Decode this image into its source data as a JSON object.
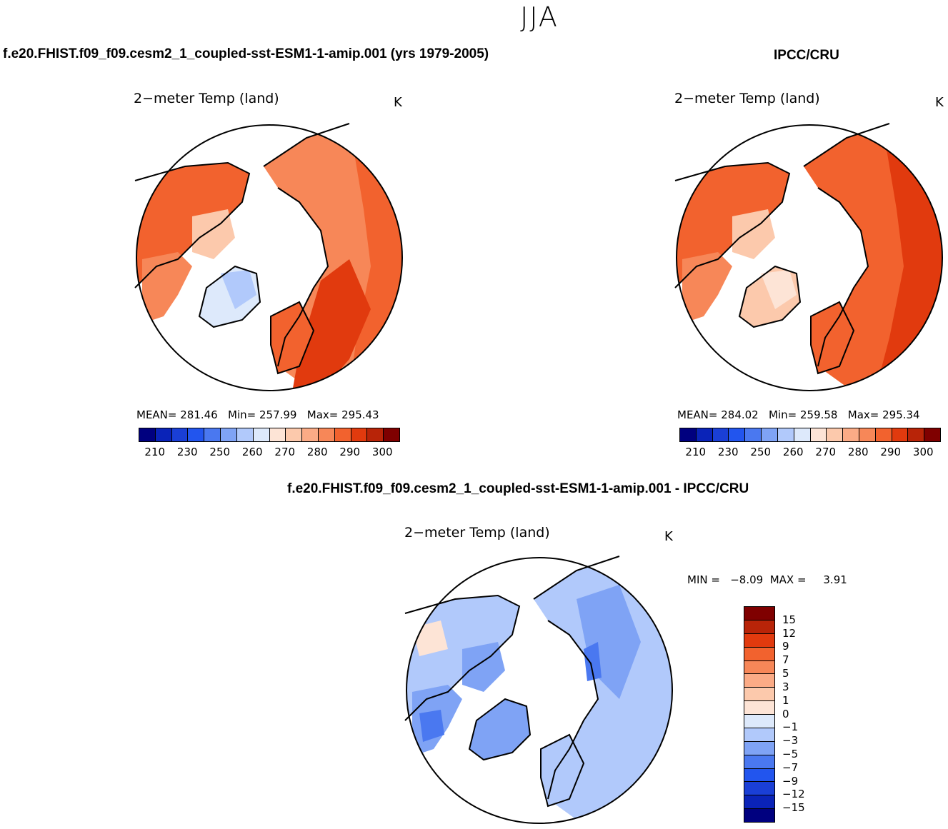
{
  "page": {
    "season": "JJA",
    "left_header": "f.e20.FHIST.f09_f09.cesm2_1_coupled-sst-ESM1-1-amip.001 (yrs 1979-2005)",
    "right_header": "IPCC/CRU",
    "diff_header": "f.e20.FHIST.f09_f09.cesm2_1_coupled-sst-ESM1-1-amip.001 - IPCC/CRU"
  },
  "colors": {
    "abs_scale": [
      "#00007f",
      "#0a23b8",
      "#1a3fd6",
      "#2255ee",
      "#4a78f0",
      "#7fa3f5",
      "#b1c9fb",
      "#dde9fb",
      "#fde4d6",
      "#fcc9ac",
      "#fbab86",
      "#f78758",
      "#f2622e",
      "#e13a0e",
      "#b82408",
      "#7f0000"
    ],
    "diff_scale": [
      "#00007f",
      "#0a23b8",
      "#1a3fd6",
      "#2255ee",
      "#4a78f0",
      "#7fa3f5",
      "#b1c9fb",
      "#dde9fb",
      "#fde4d6",
      "#fcc9ac",
      "#fbab86",
      "#f78758",
      "#f2622e",
      "#e13a0e",
      "#b82408",
      "#7f0000"
    ],
    "ocean": "#ffffff",
    "coast": "#000000"
  },
  "panels": {
    "model": {
      "title": "2−meter Temp (land)",
      "unit": "K",
      "stats": "MEAN= 281.46   Min= 257.99   Max= 295.43",
      "ticks": [
        "210",
        "230",
        "250",
        "260",
        "270",
        "280",
        "290",
        "300"
      ]
    },
    "obs": {
      "title": "2−meter Temp (land)",
      "unit": "K",
      "stats": "MEAN= 284.02   Min= 259.58   Max= 295.34",
      "ticks": [
        "210",
        "230",
        "250",
        "260",
        "270",
        "280",
        "290",
        "300"
      ]
    },
    "diff": {
      "title": "2−meter Temp (land)",
      "unit": "K",
      "stats": "MIN =   −8.09  MAX =     3.91",
      "ticks": [
        "15",
        "12",
        "9",
        "7",
        "5",
        "3",
        "1",
        "0",
        "−1",
        "−3",
        "−5",
        "−7",
        "−9",
        "−12",
        "−15"
      ]
    }
  }
}
